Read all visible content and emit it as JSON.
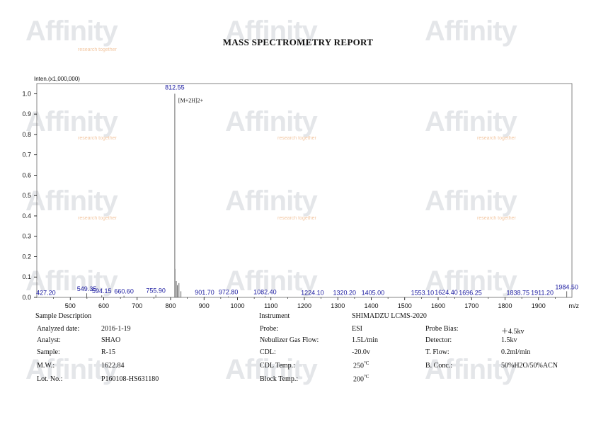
{
  "report": {
    "title": "MASS SPECTROMETRY REPORT",
    "watermark": "Affinity",
    "watermark_tagline": "research together",
    "colors": {
      "peak_label": "#1a1aa0",
      "axis": "#000000",
      "watermark": "#cfd3d8",
      "accent": "#f2c79a"
    }
  },
  "chart_data": {
    "type": "bar",
    "ylabel": "Inten.(x1,000,000)",
    "xlabel": "m/z",
    "xlim": [
      400,
      2000
    ],
    "ylim": [
      0,
      1.05
    ],
    "x_ticks": [
      "500",
      "600",
      "700",
      "800",
      "900",
      "1000",
      "1100",
      "1200",
      "1300",
      "1400",
      "1500",
      "1600",
      "1700",
      "1800",
      "1900"
    ],
    "y_ticks": [
      "0.0",
      "0.1",
      "0.2",
      "0.3",
      "0.4",
      "0.5",
      "0.6",
      "0.7",
      "0.8",
      "0.9",
      "1.0"
    ],
    "peaks": [
      {
        "mz": 427.2,
        "intensity": 0.002,
        "label": "427.20"
      },
      {
        "mz": 549.35,
        "intensity": 0.02,
        "label": "549.35"
      },
      {
        "mz": 594.15,
        "intensity": 0.01,
        "label": "594.15"
      },
      {
        "mz": 660.6,
        "intensity": 0.008,
        "label": "660.60"
      },
      {
        "mz": 755.9,
        "intensity": 0.012,
        "label": "755.90"
      },
      {
        "mz": 812.55,
        "intensity": 1.0,
        "label": "812.55"
      },
      {
        "mz": 813.05,
        "intensity": 0.14,
        "label": ""
      },
      {
        "mz": 817.0,
        "intensity": 0.08,
        "label": ""
      },
      {
        "mz": 820.0,
        "intensity": 0.06,
        "label": ""
      },
      {
        "mz": 825.0,
        "intensity": 0.07,
        "label": ""
      },
      {
        "mz": 831.0,
        "intensity": 0.03,
        "label": ""
      },
      {
        "mz": 901.7,
        "intensity": 0.003,
        "label": "901.70"
      },
      {
        "mz": 972.8,
        "intensity": 0.005,
        "label": "972.80"
      },
      {
        "mz": 1082.4,
        "intensity": 0.006,
        "label": "1082.40"
      },
      {
        "mz": 1224.1,
        "intensity": 0.002,
        "label": "1224.10"
      },
      {
        "mz": 1320.2,
        "intensity": 0.002,
        "label": "1320.20"
      },
      {
        "mz": 1405.0,
        "intensity": 0.002,
        "label": "1405.00"
      },
      {
        "mz": 1553.1,
        "intensity": 0.002,
        "label": "1553.10"
      },
      {
        "mz": 1624.4,
        "intensity": 0.004,
        "label": "1624.40"
      },
      {
        "mz": 1696.25,
        "intensity": 0.002,
        "label": "1696.25"
      },
      {
        "mz": 1838.75,
        "intensity": 0.002,
        "label": "1838.75"
      },
      {
        "mz": 1911.2,
        "intensity": 0.002,
        "label": "1911.20"
      },
      {
        "mz": 1984.5,
        "intensity": 0.03,
        "label": "1984.50"
      }
    ],
    "annotations": [
      {
        "mz": 812.55,
        "text": "[M+2H]2+"
      }
    ]
  },
  "sample": {
    "heading": "Sample Description",
    "rows": [
      {
        "label": "Analyzed date:",
        "value": "2016-1-19"
      },
      {
        "label": "Analyst:",
        "value": "SHAO"
      },
      {
        "label": "Sample:",
        "value": "R-15"
      },
      {
        "label": "M.W.:",
        "value": "1622.84"
      },
      {
        "label": "Lot. No.:",
        "value": "P160108-HS631180"
      }
    ]
  },
  "instrument": {
    "heading": "Instrument",
    "model": "SHIMADZU LCMS-2020",
    "left_rows": [
      {
        "label": "Probe:",
        "value": "ESI"
      },
      {
        "label": "Nebulizer Gas Flow:",
        "value": "1.5L/min"
      },
      {
        "label": "CDL:",
        "value": "-20.0v"
      },
      {
        "label": "CDL Temp.:",
        "value": "250",
        "unit": "°C"
      },
      {
        "label": "Block Temp.:",
        "value": "200",
        "unit": "°C"
      }
    ],
    "right_rows": [
      {
        "label": "Probe Bias:",
        "value": "＋4.5kv"
      },
      {
        "label": "Detector:",
        "value": "1.5kv"
      },
      {
        "label": "T. Flow:",
        "value": "0.2ml/min"
      },
      {
        "label": "B. Conc.:",
        "value": "50%H2O/50%ACN"
      }
    ]
  }
}
